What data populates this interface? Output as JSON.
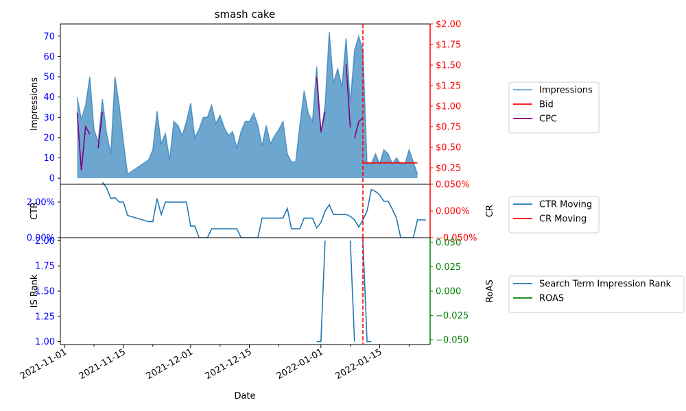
{
  "colors": {
    "impressions": "#1f77b4",
    "bid": "#ff0000",
    "cpc": "#800080",
    "ctr": "#1f77b4",
    "cr": "#ff0000",
    "rank": "#1f77b4",
    "roas": "#008000",
    "left_ticks": "#0000ff",
    "right_ticks_top": "#ff0000",
    "right_ticks_bottom": "#008000",
    "cutoff": "#ff0000"
  },
  "chart_data": {
    "type": "line",
    "title": "smash cake",
    "xlabel": "Date",
    "x_ticks": [
      "2021-11-01",
      "2021-11-15",
      "2021-12-01",
      "2021-12-15",
      "2022-01-01",
      "2022-01-15"
    ],
    "cutoff_date": "2022-01-11",
    "panels": [
      {
        "id": "top",
        "ylabel_left": "Impressions",
        "ylim_left": [
          -3,
          76
        ],
        "yticks_left": [
          "0",
          "10",
          "20",
          "30",
          "40",
          "50",
          "60",
          "70"
        ],
        "ylim_right": [
          0.05,
          2.0
        ],
        "yticks_right": [
          "$0.25",
          "$0.50",
          "$0.75",
          "$1.00",
          "$1.25",
          "$1.50",
          "$1.75",
          "$2.00"
        ],
        "legend": [
          "Impressions",
          "Bid",
          "CPC"
        ],
        "series": [
          {
            "name": "Impressions",
            "kind": "area",
            "axis": "left",
            "points": [
              [
                "2021-11-04",
                40
              ],
              [
                "2021-11-05",
                29
              ],
              [
                "2021-11-06",
                36
              ],
              [
                "2021-11-07",
                50
              ],
              [
                "2021-11-08",
                24
              ],
              [
                "2021-11-09",
                18
              ],
              [
                "2021-11-10",
                39
              ],
              [
                "2021-11-11",
                22
              ],
              [
                "2021-11-12",
                12
              ],
              [
                "2021-11-13",
                50
              ],
              [
                "2021-11-14",
                36
              ],
              [
                "2021-11-15",
                18
              ],
              [
                "2021-11-16",
                2
              ],
              [
                "2021-11-21",
                9
              ],
              [
                "2021-11-22",
                14
              ],
              [
                "2021-11-23",
                33
              ],
              [
                "2021-11-24",
                17
              ],
              [
                "2021-11-25",
                22
              ],
              [
                "2021-11-26",
                9
              ],
              [
                "2021-11-27",
                28
              ],
              [
                "2021-11-28",
                26
              ],
              [
                "2021-11-29",
                21
              ],
              [
                "2021-11-30",
                28
              ],
              [
                "2021-12-01",
                37
              ],
              [
                "2021-12-02",
                20
              ],
              [
                "2021-12-03",
                24
              ],
              [
                "2021-12-04",
                30
              ],
              [
                "2021-12-05",
                30
              ],
              [
                "2021-12-06",
                36
              ],
              [
                "2021-12-07",
                27
              ],
              [
                "2021-12-08",
                31
              ],
              [
                "2021-12-09",
                25
              ],
              [
                "2021-12-10",
                21
              ],
              [
                "2021-12-11",
                23
              ],
              [
                "2021-12-12",
                15
              ],
              [
                "2021-12-13",
                23
              ],
              [
                "2021-12-14",
                28
              ],
              [
                "2021-12-15",
                28
              ],
              [
                "2021-12-16",
                32
              ],
              [
                "2021-12-17",
                26
              ],
              [
                "2021-12-18",
                16
              ],
              [
                "2021-12-19",
                26
              ],
              [
                "2021-12-20",
                17
              ],
              [
                "2021-12-21",
                21
              ],
              [
                "2021-12-22",
                24
              ],
              [
                "2021-12-23",
                28
              ],
              [
                "2021-12-24",
                12
              ],
              [
                "2021-12-25",
                8
              ],
              [
                "2021-12-26",
                8
              ],
              [
                "2021-12-27",
                26
              ],
              [
                "2021-12-28",
                43
              ],
              [
                "2021-12-29",
                32
              ],
              [
                "2021-12-30",
                28
              ],
              [
                "2021-12-31",
                55
              ],
              [
                "2022-01-01",
                22
              ],
              [
                "2022-01-02",
                36
              ],
              [
                "2022-01-03",
                72
              ],
              [
                "2022-01-04",
                47
              ],
              [
                "2022-01-05",
                54
              ],
              [
                "2022-01-06",
                45
              ],
              [
                "2022-01-07",
                69
              ],
              [
                "2022-01-08",
                37
              ],
              [
                "2022-01-09",
                63
              ],
              [
                "2022-01-10",
                70
              ],
              [
                "2022-01-11",
                63
              ],
              [
                "2022-01-12",
                7
              ],
              [
                "2022-01-13",
                7
              ],
              [
                "2022-01-14",
                12
              ],
              [
                "2022-01-15",
                7
              ],
              [
                "2022-01-16",
                14
              ],
              [
                "2022-01-17",
                12
              ],
              [
                "2022-01-18",
                7
              ],
              [
                "2022-01-19",
                10
              ],
              [
                "2022-01-20",
                7
              ],
              [
                "2022-01-21",
                7
              ],
              [
                "2022-01-22",
                14
              ],
              [
                "2022-01-23",
                8
              ],
              [
                "2022-01-24",
                2
              ]
            ]
          },
          {
            "name": "Bid",
            "kind": "line",
            "axis": "right",
            "points": [
              [
                "2022-01-11",
                0.31
              ],
              [
                "2022-01-24",
                0.31
              ]
            ]
          },
          {
            "name": "CPC",
            "kind": "line",
            "axis": "right",
            "segments": [
              [
                [
                  "2021-11-04",
                  0.92
                ],
                [
                  "2021-11-05",
                  0.22
                ],
                [
                  "2021-11-06",
                  0.75
                ],
                [
                  "2021-11-07",
                  0.66
                ]
              ],
              [
                [
                  "2021-11-09",
                  0.49
                ],
                [
                  "2021-11-10",
                  0.93
                ]
              ],
              [
                [
                  "2021-12-31",
                  1.35
                ],
                [
                  "2022-01-01",
                  0.69
                ],
                [
                  "2022-01-02",
                  0.93
                ]
              ],
              [
                [
                  "2022-01-07",
                  1.51
                ],
                [
                  "2022-01-08",
                  0.74
                ]
              ],
              [
                [
                  "2022-01-09",
                  0.61
                ],
                [
                  "2022-01-10",
                  0.81
                ],
                [
                  "2022-01-11",
                  0.86
                ]
              ]
            ]
          }
        ]
      },
      {
        "id": "middle",
        "ylabel_left": "CTR",
        "ylabel_right": "CR",
        "ylim_left": [
          0.0,
          3.0
        ],
        "yticks_left": [
          "0.00%",
          "2.00%"
        ],
        "ylim_right": [
          -0.05,
          0.05
        ],
        "yticks_right": [
          "−0.050%",
          "0.000%",
          "0.050%"
        ],
        "legend": [
          "CTR Moving",
          "CR Moving"
        ],
        "series": [
          {
            "name": "CTR Moving",
            "kind": "line",
            "axis": "left",
            "points": [
              [
                "2021-11-10",
                3.1
              ],
              [
                "2021-11-11",
                2.8
              ],
              [
                "2021-11-12",
                2.2
              ],
              [
                "2021-11-13",
                2.25
              ],
              [
                "2021-11-14",
                2.0
              ],
              [
                "2021-11-15",
                2.0
              ],
              [
                "2021-11-16",
                1.25
              ],
              [
                "2021-11-21",
                0.9
              ],
              [
                "2021-11-22",
                0.9
              ],
              [
                "2021-11-23",
                2.2
              ],
              [
                "2021-11-24",
                1.3
              ],
              [
                "2021-11-25",
                2.0
              ],
              [
                "2021-11-26",
                2.0
              ],
              [
                "2021-11-30",
                2.0
              ],
              [
                "2021-12-01",
                0.65
              ],
              [
                "2021-12-02",
                0.65
              ],
              [
                "2021-12-03",
                0.0
              ],
              [
                "2021-12-04",
                0.0
              ],
              [
                "2021-12-05",
                0.0
              ],
              [
                "2021-12-06",
                0.5
              ],
              [
                "2021-12-12",
                0.5
              ],
              [
                "2021-12-13",
                0.0
              ],
              [
                "2021-12-17",
                0.0
              ],
              [
                "2021-12-18",
                1.1
              ],
              [
                "2021-12-22",
                1.1
              ],
              [
                "2021-12-23",
                1.1
              ],
              [
                "2021-12-24",
                1.65
              ],
              [
                "2021-12-25",
                0.5
              ],
              [
                "2021-12-27",
                0.5
              ],
              [
                "2021-12-28",
                1.1
              ],
              [
                "2021-12-29",
                1.1
              ],
              [
                "2021-12-30",
                1.1
              ],
              [
                "2021-12-31",
                0.55
              ],
              [
                "2022-01-01",
                0.85
              ],
              [
                "2022-01-02",
                1.5
              ],
              [
                "2022-01-03",
                1.85
              ],
              [
                "2022-01-04",
                1.3
              ],
              [
                "2022-01-05",
                1.3
              ],
              [
                "2022-01-06",
                1.3
              ],
              [
                "2022-01-07",
                1.3
              ],
              [
                "2022-01-08",
                1.2
              ],
              [
                "2022-01-09",
                1.0
              ],
              [
                "2022-01-10",
                0.6
              ],
              [
                "2022-01-11",
                1.0
              ],
              [
                "2022-01-12",
                1.5
              ],
              [
                "2022-01-13",
                2.7
              ],
              [
                "2022-01-14",
                2.6
              ],
              [
                "2022-01-15",
                2.4
              ],
              [
                "2022-01-16",
                2.05
              ],
              [
                "2022-01-17",
                2.05
              ],
              [
                "2022-01-18",
                1.6
              ],
              [
                "2022-01-19",
                1.1
              ],
              [
                "2022-01-20",
                0.0
              ],
              [
                "2022-01-21",
                0.0
              ],
              [
                "2022-01-22",
                0.0
              ],
              [
                "2022-01-23",
                0.0
              ],
              [
                "2022-01-24",
                1.0
              ],
              [
                "2022-01-26",
                1.0
              ]
            ]
          },
          {
            "name": "CR Moving",
            "kind": "line",
            "axis": "right",
            "points": []
          }
        ]
      },
      {
        "id": "bottom",
        "ylabel_left": "IS Rank",
        "ylabel_right": "RoAS",
        "ylim_left": [
          0.97,
          2.03
        ],
        "yticks_left": [
          "1.00",
          "1.25",
          "1.50",
          "1.75",
          "2.00"
        ],
        "ylim_right": [
          -0.055,
          0.055
        ],
        "yticks_right": [
          "−0.050",
          "−0.025",
          "0.000",
          "0.025",
          "0.050"
        ],
        "legend": [
          "Search Term Impression Rank",
          "ROAS"
        ],
        "series": [
          {
            "name": "Search Term Impression Rank",
            "kind": "line",
            "axis": "left",
            "segments": [
              [
                [
                  "2021-12-31",
                  1.0
                ],
                [
                  "2022-01-01",
                  1.0
                ],
                [
                  "2022-01-02",
                  2.0
                ]
              ],
              [
                [
                  "2022-01-08",
                  2.0
                ],
                [
                  "2022-01-09",
                  1.0
                ]
              ],
              [
                [
                  "2022-01-11",
                  2.0
                ],
                [
                  "2022-01-12",
                  1.0
                ],
                [
                  "2022-01-13",
                  1.0
                ]
              ]
            ]
          },
          {
            "name": "ROAS",
            "kind": "line",
            "axis": "right",
            "points": []
          }
        ]
      }
    ]
  }
}
